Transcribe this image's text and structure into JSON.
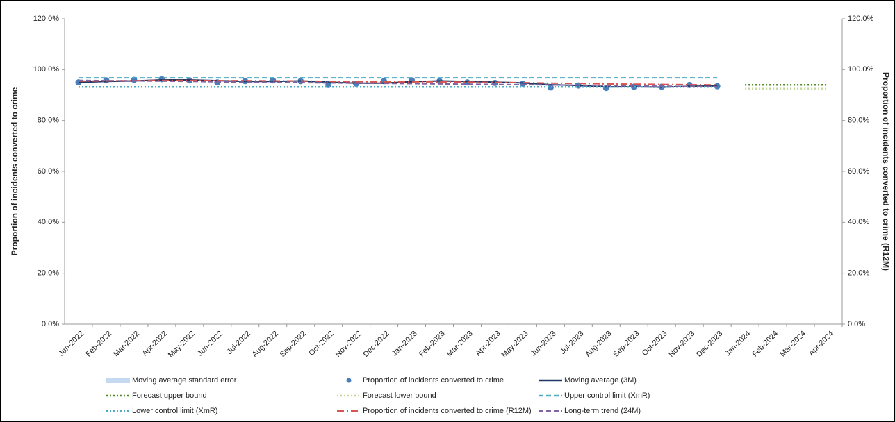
{
  "chart_data": {
    "type": "line",
    "y_label": "Proportion of incidents converted to crime",
    "y2_label": "Proportion of incidents converted to crime (R12M)",
    "categories": [
      "Jan-2022",
      "Feb-2022",
      "Mar-2022",
      "Apr-2022",
      "May-2022",
      "Jun-2022",
      "Jul-2022",
      "Aug-2022",
      "Sep-2022",
      "Oct-2022",
      "Nov-2022",
      "Dec-2022",
      "Jan-2023",
      "Feb-2023",
      "Mar-2023",
      "Apr-2023",
      "May-2023",
      "Jun-2023",
      "Jul-2023",
      "Aug-2023",
      "Sep-2023",
      "Oct-2023",
      "Nov-2023",
      "Dec-2023",
      "Jan-2024",
      "Feb-2024",
      "Mar-2024",
      "Apr-2024"
    ],
    "ylim": [
      0,
      120
    ],
    "yticks": [
      {
        "value": 0,
        "label": "0.0%"
      },
      {
        "value": 20,
        "label": "20.0%"
      },
      {
        "value": 40,
        "label": "40.0%"
      },
      {
        "value": 60,
        "label": "60.0%"
      },
      {
        "value": 80,
        "label": "80.0%"
      },
      {
        "value": 100,
        "label": "100.0%"
      },
      {
        "value": 120,
        "label": "120.0%"
      }
    ],
    "y2lim": [
      0,
      120
    ],
    "y2ticks": [
      {
        "value": 0,
        "label": "0.0%"
      },
      {
        "value": 20,
        "label": "20.0%"
      },
      {
        "value": 40,
        "label": "40.0%"
      },
      {
        "value": 60,
        "label": "60.0%"
      },
      {
        "value": 80,
        "label": "80.0%"
      },
      {
        "value": 100,
        "label": "100.0%"
      },
      {
        "value": 120,
        "label": "120.0%"
      }
    ],
    "grid": false,
    "legend": "bottom",
    "series": [
      {
        "name": "Moving average standard error",
        "color": "#c5d9f1",
        "style": "band",
        "band_of": 2,
        "values": [
          0.3,
          0.3,
          0.3,
          0.3,
          0.3,
          0.3,
          0.3,
          0.3,
          0.3,
          0.3,
          0.3,
          0.3,
          0.3,
          0.3,
          0.3,
          0.3,
          0.3,
          0.3,
          0.3,
          0.3,
          0.3,
          0.3,
          0.3,
          0.3,
          null,
          null,
          null,
          null
        ]
      },
      {
        "name": "Proportion of incidents converted to crime",
        "color": "#4a7ebb",
        "style": "markers",
        "values": [
          95.0,
          95.8,
          96.0,
          96.3,
          95.8,
          95.0,
          95.5,
          95.8,
          95.5,
          94.0,
          94.5,
          95.5,
          95.8,
          95.5,
          95.0,
          94.8,
          94.5,
          93.0,
          93.8,
          92.8,
          93.3,
          93.3,
          94.0,
          93.5,
          null,
          null,
          null,
          null
        ]
      },
      {
        "name": "Moving average (3M)",
        "color": "#1f3864",
        "style": "solid",
        "values": [
          95.0,
          95.4,
          95.6,
          96.0,
          96.0,
          95.7,
          95.4,
          95.4,
          95.6,
          95.1,
          94.7,
          94.7,
          95.3,
          95.6,
          95.4,
          95.1,
          94.8,
          94.1,
          93.8,
          93.2,
          93.3,
          93.1,
          93.5,
          93.6,
          null,
          null,
          null,
          null
        ]
      },
      {
        "name": "Forecast upper bound",
        "color": "#4e8a1e",
        "style": "dot",
        "values": [
          null,
          null,
          null,
          null,
          null,
          null,
          null,
          null,
          null,
          null,
          null,
          null,
          null,
          null,
          null,
          null,
          null,
          null,
          null,
          null,
          null,
          null,
          null,
          null,
          94.0,
          94.0,
          94.0,
          94.0
        ]
      },
      {
        "name": "Forecast lower bound",
        "color": "#c4d79b",
        "style": "dot",
        "values": [
          null,
          null,
          null,
          null,
          null,
          null,
          null,
          null,
          null,
          null,
          null,
          null,
          null,
          null,
          null,
          null,
          null,
          null,
          null,
          null,
          null,
          null,
          null,
          null,
          92.5,
          92.5,
          92.5,
          92.5
        ]
      },
      {
        "name": "Upper control limit (XmR)",
        "color": "#4bacc6",
        "style": "dash",
        "values": [
          96.8,
          96.8,
          96.8,
          96.8,
          96.8,
          96.8,
          96.8,
          96.8,
          96.8,
          96.8,
          96.8,
          96.8,
          96.8,
          96.8,
          96.8,
          96.8,
          96.8,
          96.8,
          96.8,
          96.8,
          96.8,
          96.8,
          96.8,
          96.8,
          null,
          null,
          null,
          null
        ]
      },
      {
        "name": "Lower control limit (XmR)",
        "color": "#4bacc6",
        "style": "dot",
        "values": [
          93.2,
          93.2,
          93.2,
          93.2,
          93.2,
          93.2,
          93.2,
          93.2,
          93.2,
          93.2,
          93.2,
          93.2,
          93.2,
          93.2,
          93.2,
          93.2,
          93.2,
          93.2,
          93.2,
          93.2,
          93.2,
          93.2,
          93.2,
          93.2,
          null,
          null,
          null,
          null
        ]
      },
      {
        "name": "Proportion of incidents converted to crime (R12M)",
        "color": "#d9534f",
        "style": "dashdot",
        "axis": "y2",
        "values": [
          95.5,
          95.6,
          95.7,
          95.8,
          95.8,
          95.7,
          95.7,
          95.6,
          95.6,
          95.4,
          95.3,
          95.2,
          95.2,
          95.2,
          95.1,
          95.0,
          94.9,
          94.7,
          94.6,
          94.4,
          94.3,
          94.2,
          94.1,
          94.0,
          null,
          null,
          null,
          null
        ]
      },
      {
        "name": "Long-term trend (24M)",
        "color": "#8064a2",
        "style": "dash",
        "values": [
          95.8,
          95.7,
          95.6,
          95.5,
          95.4,
          95.2,
          95.1,
          95.0,
          94.9,
          94.8,
          94.7,
          94.6,
          94.5,
          94.4,
          94.3,
          94.2,
          94.1,
          94.0,
          93.9,
          93.8,
          93.6,
          93.5,
          93.4,
          93.3,
          null,
          null,
          null,
          null
        ]
      }
    ]
  }
}
